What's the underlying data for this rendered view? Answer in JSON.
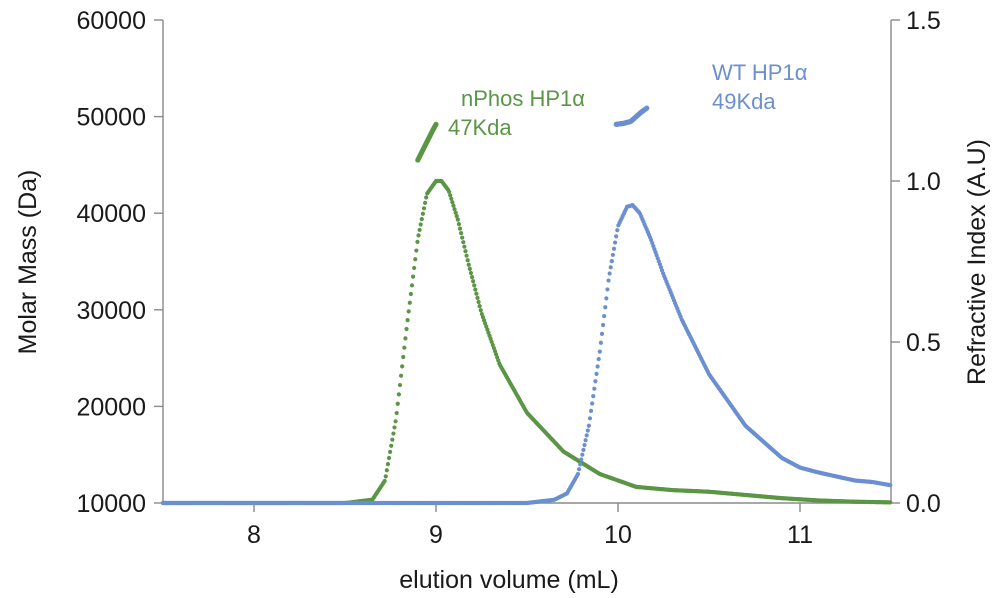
{
  "chart_data": {
    "type": "scatter",
    "xlabel": "elution volume (mL)",
    "ylabel_left": "Molar Mass (Da)",
    "ylabel_right": "Refractive Index (A.U)",
    "xlim": [
      7.5,
      11.5
    ],
    "ylim_left": [
      10000,
      60000
    ],
    "ylim_right": [
      0.0,
      1.5
    ],
    "x_ticks": [
      "8",
      "9",
      "10",
      "11"
    ],
    "y_left_ticks": [
      "10000",
      "20000",
      "30000",
      "40000",
      "50000",
      "60000"
    ],
    "y_right_ticks": [
      "0.0",
      "0.5",
      "1.0",
      "1.5"
    ],
    "grid": false,
    "colors": {
      "nphos": "#5b9546",
      "wt": "#6b8fd0"
    },
    "annotations": {
      "nphos": {
        "name": "nPhos HP1α",
        "mass": "47Kda"
      },
      "wt": {
        "name": "WT HP1α",
        "mass": "49Kda"
      }
    },
    "series": [
      {
        "name": "nPhos HP1α",
        "axis": "right",
        "x": [
          7.5,
          8.5,
          8.65,
          8.72,
          8.78,
          8.84,
          8.9,
          8.95,
          9.0,
          9.03,
          9.07,
          9.12,
          9.18,
          9.25,
          9.35,
          9.5,
          9.7,
          9.9,
          10.1,
          10.3,
          10.5,
          10.7,
          10.9,
          11.1,
          11.3,
          11.5
        ],
        "y": [
          0.0,
          0.0,
          0.01,
          0.07,
          0.26,
          0.55,
          0.82,
          0.96,
          1.0,
          1.0,
          0.97,
          0.88,
          0.74,
          0.59,
          0.43,
          0.28,
          0.16,
          0.09,
          0.05,
          0.04,
          0.035,
          0.025,
          0.015,
          0.008,
          0.004,
          0.002
        ]
      },
      {
        "name": "WT HP1α",
        "axis": "right",
        "x": [
          7.5,
          9.5,
          9.65,
          9.72,
          9.78,
          9.84,
          9.9,
          9.95,
          10.0,
          10.05,
          10.08,
          10.12,
          10.18,
          10.25,
          10.35,
          10.5,
          10.7,
          10.9,
          11.0,
          11.1,
          11.3,
          11.4,
          11.5
        ],
        "y": [
          0.0,
          0.0,
          0.01,
          0.03,
          0.09,
          0.24,
          0.47,
          0.7,
          0.86,
          0.92,
          0.925,
          0.9,
          0.82,
          0.71,
          0.57,
          0.4,
          0.24,
          0.14,
          0.11,
          0.095,
          0.07,
          0.065,
          0.055
        ]
      },
      {
        "name": "nPhos HP1α molar mass",
        "axis": "left",
        "x": [
          8.9,
          8.94,
          8.98,
          9.0
        ],
        "y": [
          45500,
          47000,
          48500,
          49200
        ]
      },
      {
        "name": "WT HP1α molar mass",
        "axis": "left",
        "x": [
          9.99,
          10.03,
          10.07,
          10.1,
          10.13,
          10.16
        ],
        "y": [
          49200,
          49300,
          49500,
          50000,
          50500,
          50900
        ]
      }
    ]
  }
}
